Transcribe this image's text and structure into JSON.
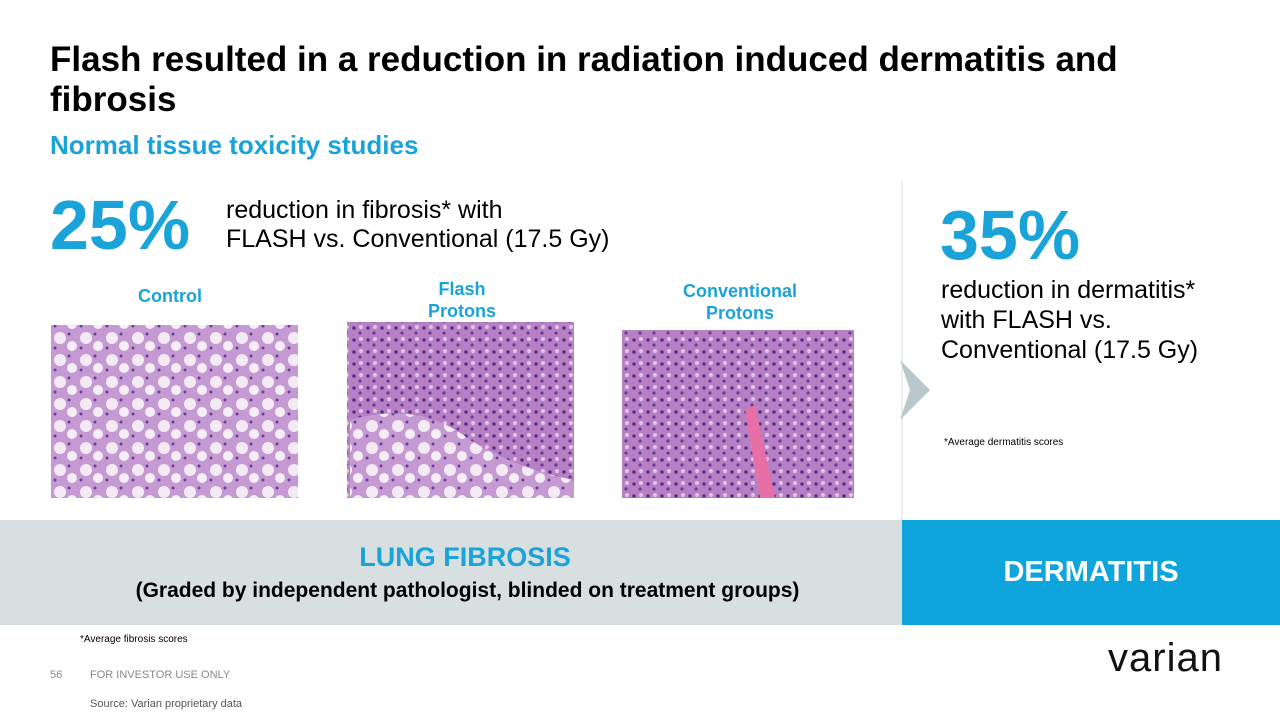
{
  "header": {
    "title": "Flash resulted in a reduction in radiation induced dermatitis and fibrosis",
    "subtitle": "Normal tissue toxicity studies"
  },
  "fibrosis": {
    "stat": "25%",
    "description": [
      "reduction in fibrosis* with",
      "FLASH vs. Conventional (17.5 Gy)"
    ],
    "images": [
      {
        "label": [
          "Control"
        ]
      },
      {
        "label": [
          "Flash",
          "Protons"
        ]
      },
      {
        "label": [
          "Conventional",
          "Protons"
        ]
      }
    ],
    "banner_title": "LUNG FIBROSIS",
    "banner_subtitle": "(Graded by independent pathologist, blinded on treatment groups)",
    "footnote": "*Average fibrosis scores"
  },
  "dermatitis": {
    "stat": "35%",
    "description": [
      "reduction in dermatitis*",
      "with FLASH vs.",
      "Conventional (17.5 Gy)"
    ],
    "footnote": "*Average dermatitis scores",
    "banner_title": "DERMATITIS"
  },
  "footer": {
    "page": "56",
    "notice": "FOR INVESTOR USE ONLY",
    "source": "Source:  Varian proprietary data",
    "logo": "varian"
  }
}
